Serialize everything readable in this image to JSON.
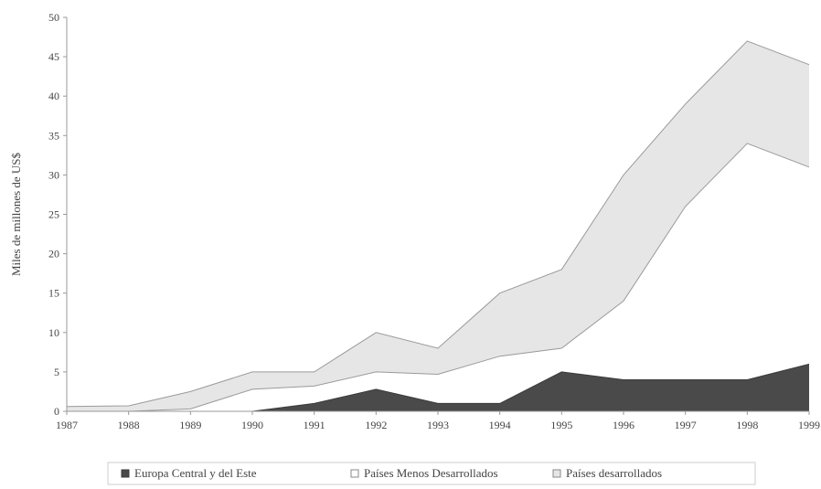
{
  "chart_data": {
    "type": "area",
    "stacked": true,
    "title": "",
    "xlabel": "",
    "ylabel": "Miles de millones de US$",
    "ylim": [
      0,
      50
    ],
    "yticks": [
      "0",
      "5",
      "10",
      "15",
      "20",
      "25",
      "30",
      "35",
      "40",
      "45",
      "50"
    ],
    "categories": [
      "1987",
      "1988",
      "1989",
      "1990",
      "1991",
      "1992",
      "1993",
      "1994",
      "1995",
      "1996",
      "1997",
      "1998",
      "1999"
    ],
    "grid": false,
    "legend_position": "bottom",
    "series": [
      {
        "name": "Europa Central y del Este",
        "color": "#4a4a4a",
        "values": [
          0,
          0,
          0,
          0,
          1,
          2.8,
          1,
          1,
          5,
          4,
          4,
          4,
          6
        ]
      },
      {
        "name": "Países Menos Desarrollados",
        "color": "#ffffff",
        "values": [
          0,
          0,
          0.3,
          2.8,
          2.2,
          2.2,
          3.7,
          6,
          3,
          10,
          22,
          30,
          25
        ]
      },
      {
        "name": "Países desarrollados",
        "color": "#e6e6e6",
        "values": [
          0.6,
          0.7,
          2.2,
          2.2,
          1.8,
          5,
          3.3,
          8,
          10,
          16,
          13,
          13,
          13
        ]
      }
    ]
  }
}
